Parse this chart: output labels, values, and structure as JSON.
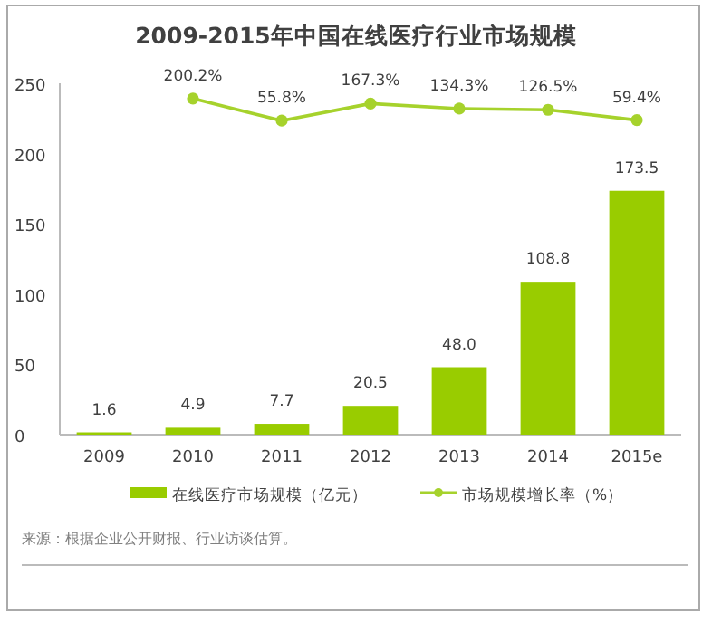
{
  "chart_data": {
    "type": "bar",
    "title": "2009-2015年中国在线医疗行业市场规模",
    "categories": [
      "2009",
      "2010",
      "2011",
      "2012",
      "2013",
      "2014",
      "2015e"
    ],
    "series": [
      {
        "name": "在线医疗市场规模（亿元）",
        "color": "#99cc00",
        "values": [
          1.6,
          4.9,
          7.7,
          20.5,
          48.0,
          108.8,
          173.5
        ],
        "value_labels": [
          "1.6",
          "4.9",
          "7.7",
          "20.5",
          "48.0",
          "108.8",
          "173.5"
        ]
      },
      {
        "name": "市场规模增长率（%）",
        "type": "line",
        "axis": "y2",
        "color": "#a6d22c",
        "values": [
          null,
          200.2,
          55.8,
          167.3,
          134.3,
          126.5,
          59.4
        ],
        "value_labels": [
          null,
          "200.2%",
          "55.8%",
          "167.3%",
          "134.3%",
          "126.5%",
          "59.4%"
        ]
      }
    ],
    "ylim": [
      0,
      250
    ],
    "yticks": [
      0,
      50,
      100,
      150,
      200,
      250
    ],
    "y2lim": [
      -2000,
      300
    ],
    "legend": "bottom",
    "marker": "circle",
    "annotations": [
      "来源：根据企业公开财报、行业访谈估算。"
    ]
  }
}
